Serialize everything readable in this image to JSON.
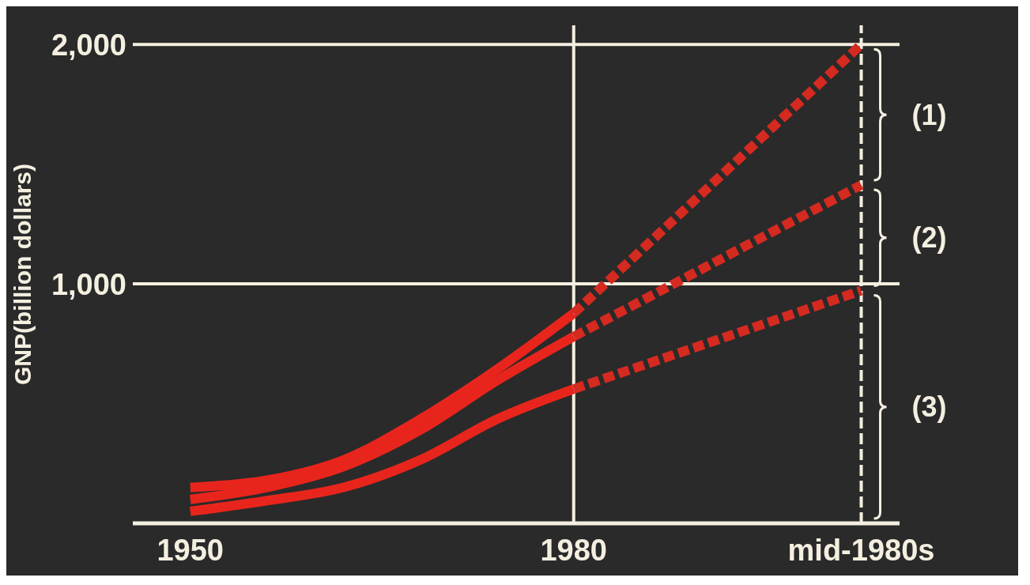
{
  "chart_data": {
    "type": "line",
    "ylabel": "GNP(billion dollars)",
    "categories": [
      "1950",
      null,
      null,
      null,
      null,
      null,
      null,
      null,
      null,
      null,
      null,
      null,
      null,
      null,
      null,
      null,
      null,
      null,
      null,
      null,
      "1980",
      null,
      null,
      null,
      null,
      null,
      null,
      null,
      null,
      null,
      null,
      null,
      null,
      null,
      null,
      "mid-1980s"
    ],
    "series": [
      {
        "color": "#e8251c",
        "line_style": "solid",
        "values": [
          150,
          null,
          null,
          null,
          180,
          null,
          null,
          null,
          265,
          null,
          null,
          null,
          435,
          null,
          null,
          null,
          643,
          null,
          null,
          null,
          877,
          null,
          null,
          null,
          null,
          null,
          null,
          null,
          null,
          null,
          null,
          null,
          null,
          null,
          null,
          null
        ]
      },
      {
        "color": "#e8251c",
        "line_style": "solid",
        "values": [
          100,
          null,
          null,
          null,
          150,
          null,
          null,
          null,
          237,
          null,
          null,
          null,
          390,
          null,
          null,
          null,
          596,
          null,
          null,
          null,
          780,
          null,
          null,
          null,
          null,
          null,
          null,
          null,
          null,
          null,
          null,
          null,
          null,
          null,
          null,
          null
        ]
      },
      {
        "color": "#e8251c",
        "line_style": "solid",
        "values": [
          50,
          null,
          null,
          null,
          95,
          null,
          null,
          null,
          150,
          null,
          null,
          null,
          265,
          null,
          null,
          null,
          435,
          null,
          null,
          null,
          561,
          null,
          null,
          null,
          null,
          null,
          null,
          null,
          null,
          null,
          null,
          null,
          null,
          null,
          null,
          null
        ]
      },
      {
        "color": "#d42a20",
        "line_style": "dashed",
        "values": [
          null,
          null,
          null,
          null,
          null,
          null,
          null,
          null,
          null,
          null,
          null,
          null,
          null,
          null,
          null,
          null,
          null,
          null,
          null,
          null,
          877,
          null,
          null,
          null,
          null,
          null,
          null,
          null,
          null,
          null,
          null,
          null,
          null,
          null,
          null,
          2000
        ]
      },
      {
        "color": "#d42a20",
        "line_style": "dashed",
        "values": [
          null,
          null,
          null,
          null,
          null,
          null,
          null,
          null,
          null,
          null,
          null,
          null,
          null,
          null,
          null,
          null,
          null,
          null,
          null,
          null,
          780,
          null,
          null,
          null,
          null,
          null,
          null,
          null,
          null,
          null,
          null,
          null,
          null,
          null,
          null,
          1413
        ]
      },
      {
        "color": "#d42a20",
        "line_style": "dashed",
        "values": [
          null,
          null,
          null,
          null,
          null,
          null,
          null,
          null,
          null,
          null,
          null,
          null,
          null,
          null,
          null,
          null,
          null,
          null,
          null,
          null,
          561,
          null,
          null,
          null,
          null,
          null,
          null,
          null,
          null,
          null,
          null,
          null,
          null,
          null,
          null,
          972
        ]
      }
    ],
    "ylim": [
      0,
      2080
    ],
    "yticks": [
      {
        "value": 1000,
        "label": "1,000"
      },
      {
        "value": 2000,
        "label": "2,000"
      }
    ],
    "ref_lines": [
      {
        "axis": "y",
        "value": 1000,
        "color": "#f4efe0",
        "line_style": "solid"
      },
      {
        "axis": "y",
        "value": 2000,
        "color": "#f4efe0",
        "line_style": "solid"
      },
      {
        "axis": "x",
        "value": "1980",
        "color": "#f4efe0",
        "line_style": "solid"
      },
      {
        "axis": "x",
        "value": "mid-1980s",
        "color": "#f4efe0",
        "line_style": "dashed"
      }
    ],
    "annotations": [
      "(1)",
      "(2)",
      "(3)"
    ]
  }
}
